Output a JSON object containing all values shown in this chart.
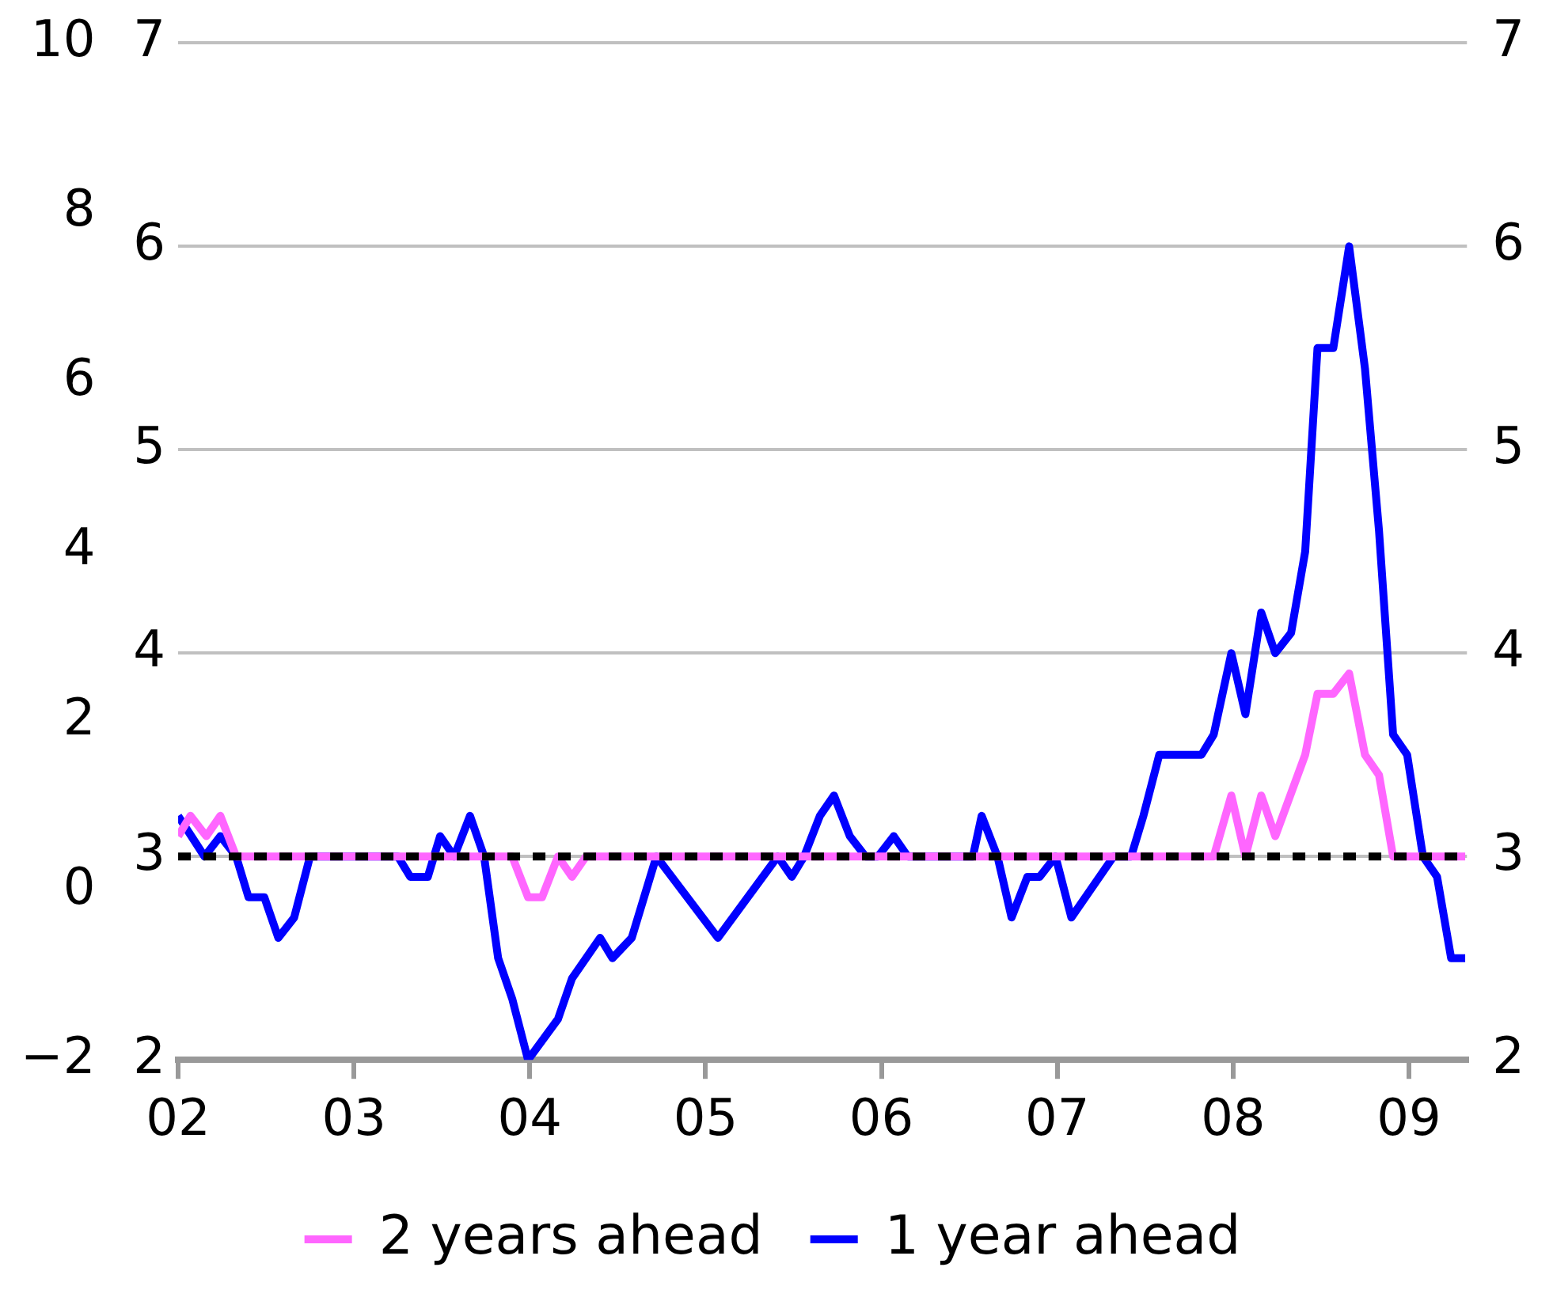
{
  "chart_data": {
    "type": "line",
    "xlim": [
      2002,
      2009.33
    ],
    "xticks": [
      {
        "value": 2002,
        "label": "02"
      },
      {
        "value": 2003,
        "label": "03"
      },
      {
        "value": 2004,
        "label": "04"
      },
      {
        "value": 2005,
        "label": "05"
      },
      {
        "value": 2006,
        "label": "06"
      },
      {
        "value": 2007,
        "label": "07"
      },
      {
        "value": 2008,
        "label": "08"
      },
      {
        "value": 2009,
        "label": "09"
      }
    ],
    "ylim": [
      2,
      7
    ],
    "yticks": [
      2,
      3,
      4,
      5,
      6,
      7
    ],
    "y2lim": [
      2,
      7
    ],
    "y2ticks": [
      2,
      3,
      4,
      5,
      6,
      7
    ],
    "y3lim": [
      -2,
      10
    ],
    "y3ticks": [
      {
        "value": -2,
        "label": "−2"
      },
      0,
      2,
      4,
      6,
      8,
      10
    ],
    "series": [
      {
        "name": "2 years ahead",
        "color": "#ff66ff",
        "x": [
          2002.0,
          2002.07,
          2002.16,
          2002.24,
          2002.33,
          2003.9,
          2003.99,
          2004.07,
          2004.16,
          2004.24,
          2004.32,
          2007.89,
          2007.99,
          2008.07,
          2008.16,
          2008.24,
          2008.41,
          2008.48,
          2008.57,
          2008.66,
          2008.75,
          2008.83,
          2008.91,
          2009.32
        ],
        "values": [
          3.1,
          3.2,
          3.1,
          3.2,
          3.0,
          3.0,
          2.8,
          2.8,
          3.0,
          2.9,
          3.0,
          3.0,
          3.3,
          3.0,
          3.3,
          3.1,
          3.5,
          3.8,
          3.8,
          3.9,
          3.5,
          3.4,
          3.0,
          3.0
        ]
      },
      {
        "name": "1 year ahead",
        "color": "#0000ff",
        "x": [
          2002.0,
          2002.15,
          2002.24,
          2002.33,
          2002.4,
          2002.49,
          2002.57,
          2002.66,
          2002.75,
          2003.25,
          2003.32,
          2003.42,
          2003.49,
          2003.57,
          2003.66,
          2003.74,
          2003.82,
          2003.9,
          2003.99,
          2004.16,
          2004.24,
          2004.4,
          2004.47,
          2004.58,
          2004.72,
          2005.07,
          2005.41,
          2005.49,
          2005.56,
          2005.65,
          2005.73,
          2005.82,
          2005.91,
          2005.98,
          2006.07,
          2006.15,
          2006.52,
          2006.57,
          2006.66,
          2006.74,
          2006.83,
          2006.9,
          2006.99,
          2007.08,
          2007.32,
          2007.42,
          2007.49,
          2007.58,
          2007.82,
          2007.89,
          2007.99,
          2008.07,
          2008.16,
          2008.24,
          2008.33,
          2008.41,
          2008.48,
          2008.57,
          2008.66,
          2008.75,
          2008.83,
          2008.91,
          2008.99,
          2009.08,
          2009.16,
          2009.24,
          2009.32
        ],
        "values": [
          3.2,
          3.0,
          3.1,
          3.0,
          2.8,
          2.8,
          2.6,
          2.7,
          3.0,
          3.0,
          2.9,
          2.9,
          3.1,
          3.0,
          3.2,
          3.0,
          2.5,
          2.3,
          2.0,
          2.2,
          2.4,
          2.6,
          2.5,
          2.6,
          3.0,
          2.6,
          3.0,
          2.9,
          3.0,
          3.2,
          3.3,
          3.1,
          3.0,
          3.0,
          3.1,
          3.0,
          3.0,
          3.2,
          3.0,
          2.7,
          2.9,
          2.9,
          3.0,
          2.7,
          3.0,
          3.0,
          3.2,
          3.5,
          3.5,
          3.6,
          4.0,
          3.7,
          4.2,
          4.0,
          4.1,
          4.5,
          5.5,
          5.5,
          6.0,
          5.4,
          4.6,
          3.6,
          3.5,
          3.0,
          2.9,
          2.5,
          2.5
        ]
      }
    ],
    "ref_lines": [
      {
        "axis": "y",
        "value": 3,
        "color": "#000000",
        "line_style": "dashed"
      }
    ],
    "grid": "y",
    "legend": "bottom",
    "marker": "none",
    "line_style": "solid"
  }
}
